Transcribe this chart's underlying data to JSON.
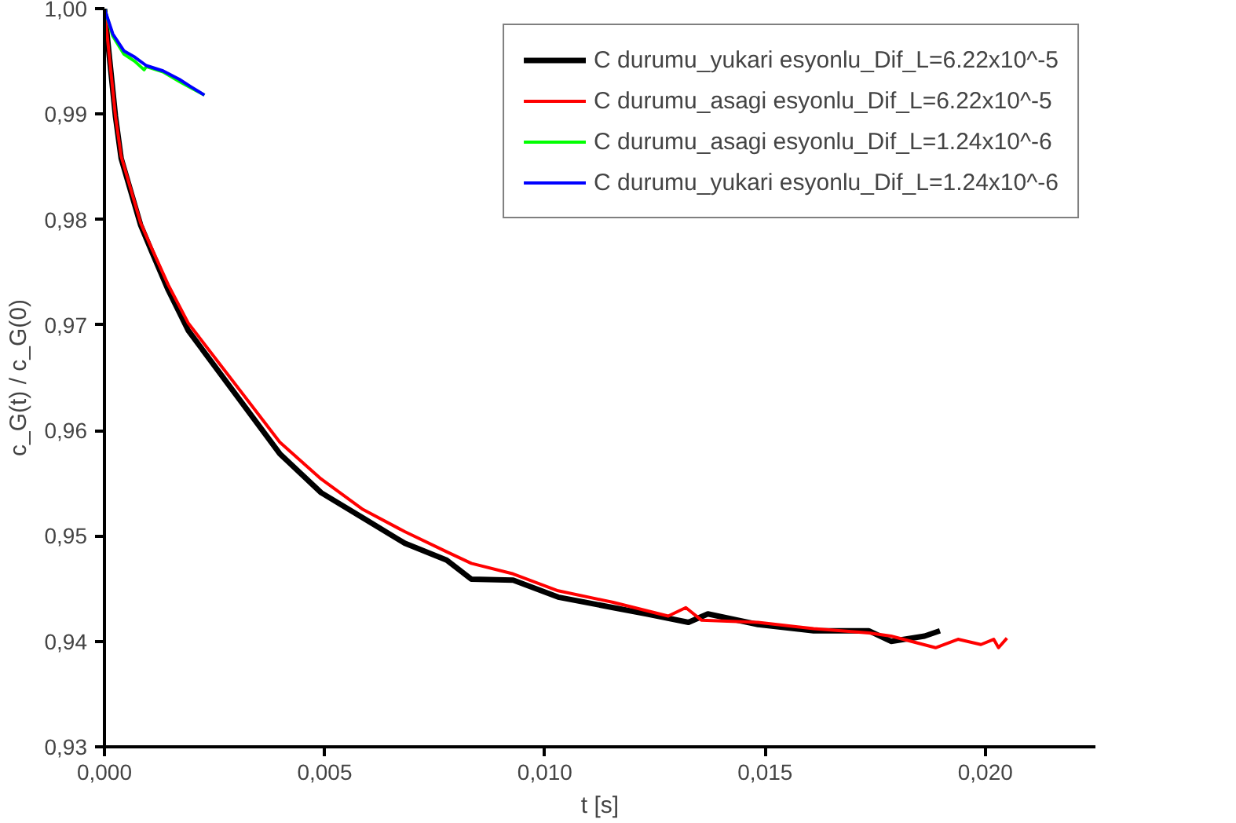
{
  "chart_data": {
    "type": "line",
    "xlabel": "t [s]",
    "ylabel": "c_G(t) / c_G(0)",
    "xlim": [
      0,
      0.0225
    ],
    "ylim": [
      0.93,
      1.0
    ],
    "xticks": [
      {
        "value": 0,
        "label": "0,000"
      },
      {
        "value": 0.005,
        "label": "0,005"
      },
      {
        "value": 0.01,
        "label": "0,010"
      },
      {
        "value": 0.015,
        "label": "0,015"
      },
      {
        "value": 0.02,
        "label": "0,020"
      }
    ],
    "yticks": [
      {
        "value": 0.93,
        "label": "0,93"
      },
      {
        "value": 0.94,
        "label": "0,94"
      },
      {
        "value": 0.95,
        "label": "0,95"
      },
      {
        "value": 0.96,
        "label": "0,96"
      },
      {
        "value": 0.97,
        "label": "0,97"
      },
      {
        "value": 0.98,
        "label": "0,98"
      },
      {
        "value": 0.99,
        "label": "0,99"
      },
      {
        "value": 1.0,
        "label": "1,00"
      }
    ],
    "grid": false,
    "legend": "top right",
    "marker": "none",
    "line_style": "solid",
    "series": [
      {
        "name": "C durumu_yukari esyonlu_Dif_L=6.22x10^-5",
        "color": "#000000",
        "x": [
          0,
          0.00025,
          0.00038,
          0.00082,
          0.00107,
          0.00145,
          0.0019,
          0.00398,
          0.00492,
          0.00587,
          0.00682,
          0.00777,
          0.00833,
          0.00928,
          0.0103,
          0.01155,
          0.01231,
          0.01326,
          0.0137,
          0.01484,
          0.0161,
          0.01736,
          0.01786,
          0.01862,
          0.01897
        ],
        "values": [
          1.0,
          0.9898,
          0.9858,
          0.9795,
          0.977,
          0.9733,
          0.9695,
          0.9578,
          0.9541,
          0.9517,
          0.9493,
          0.9477,
          0.9459,
          0.9458,
          0.9442,
          0.9432,
          0.9426,
          0.9418,
          0.9426,
          0.9416,
          0.941,
          0.941,
          0.94,
          0.9405,
          0.941
        ]
      },
      {
        "name": "C durumu_asagi esyonlu_Dif_L=6.22x10^-5",
        "color": "#ff0000",
        "x": [
          0,
          0.00025,
          0.00038,
          0.00082,
          0.00107,
          0.00145,
          0.0019,
          0.00398,
          0.00492,
          0.00587,
          0.00682,
          0.00777,
          0.00833,
          0.00928,
          0.0103,
          0.01155,
          0.0128,
          0.0132,
          0.01356,
          0.01484,
          0.0161,
          0.01736,
          0.01786,
          0.01887,
          0.01938,
          0.0199,
          0.02019,
          0.0203,
          0.02049
        ],
        "values": [
          1.0,
          0.9898,
          0.986,
          0.9797,
          0.9773,
          0.9738,
          0.9702,
          0.9589,
          0.9554,
          0.9525,
          0.9504,
          0.9485,
          0.9474,
          0.9464,
          0.9448,
          0.9437,
          0.9424,
          0.9432,
          0.942,
          0.9418,
          0.9412,
          0.9408,
          0.9405,
          0.9394,
          0.9402,
          0.9397,
          0.9402,
          0.9394,
          0.9403
        ]
      },
      {
        "name": "C durumu_asagi esyonlu_Dif_L=1.24x10^-6",
        "color": "#00ff00",
        "x": [
          0,
          0.00019,
          0.00044,
          0.00069,
          0.0009,
          0.00095,
          0.00133,
          0.0017,
          0.00196,
          0.00227
        ],
        "values": [
          1.0,
          0.9974,
          0.9957,
          0.995,
          0.9942,
          0.9945,
          0.994,
          0.9931,
          0.9925,
          0.9918
        ]
      },
      {
        "name": "C durumu_yukari esyonlu_Dif_L=1.24x10^-6",
        "color": "#0000ff",
        "x": [
          0,
          0.00019,
          0.00044,
          0.00069,
          0.00095,
          0.00133,
          0.0017,
          0.00196,
          0.00227
        ],
        "values": [
          1.0,
          0.9976,
          0.996,
          0.9954,
          0.9946,
          0.9941,
          0.9933,
          0.9926,
          0.9918
        ]
      }
    ]
  }
}
